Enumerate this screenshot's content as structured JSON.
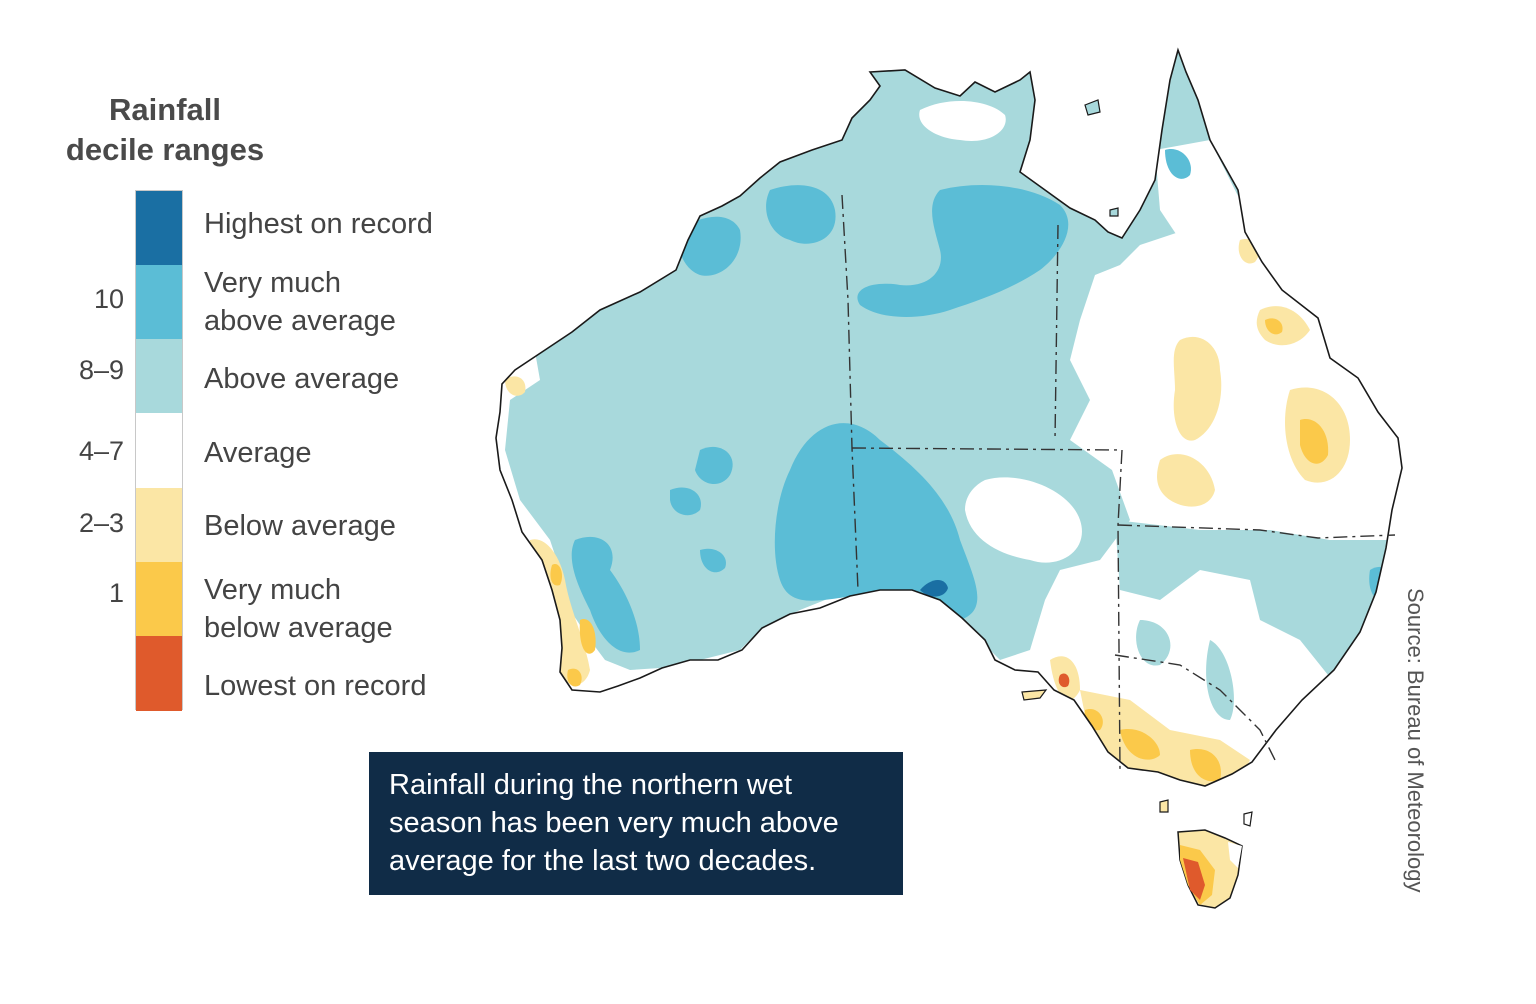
{
  "legend": {
    "title_line1": "Rainfall",
    "title_line2": "decile ranges",
    "categories": [
      {
        "label_line1": "Highest on record",
        "label_line2": "",
        "decile": "",
        "color": "#1a6fa3"
      },
      {
        "label_line1": "Very much",
        "label_line2": "above average",
        "decile": "10",
        "color": "#5bbdd6"
      },
      {
        "label_line1": "Above average",
        "label_line2": "",
        "decile": "8–9",
        "color": "#a8d9dc"
      },
      {
        "label_line1": "Average",
        "label_line2": "",
        "decile": "4–7",
        "color": "#ffffff"
      },
      {
        "label_line1": "Below average",
        "label_line2": "",
        "decile": "2–3",
        "color": "#fbe6a5"
      },
      {
        "label_line1": "Very much",
        "label_line2": "below average",
        "decile": "1",
        "color": "#fbc94a"
      },
      {
        "label_line1": "Lowest on record",
        "label_line2": "",
        "decile": "",
        "color": "#df5a2c"
      }
    ]
  },
  "callout": {
    "line1": "Rainfall during the northern wet",
    "line2": "season has been very much above",
    "line3": "average for the last two decades."
  },
  "source": "Source: Bureau of Meteorology",
  "colors": {
    "callout_background": "#102c47",
    "coastline": "#1a1a1a",
    "state_border": "#333333"
  }
}
